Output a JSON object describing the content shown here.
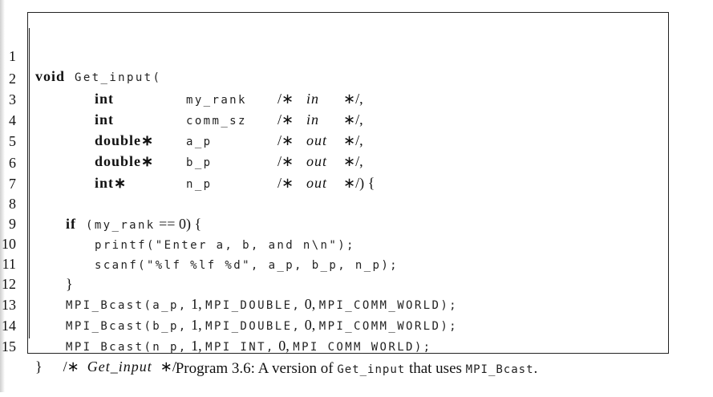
{
  "listing": {
    "lines": [
      {
        "n": "1"
      },
      {
        "n": "2"
      },
      {
        "n": "3"
      },
      {
        "n": "4"
      },
      {
        "n": "5"
      },
      {
        "n": "6"
      },
      {
        "n": "7"
      },
      {
        "n": "8"
      },
      {
        "n": "9"
      },
      {
        "n": "10"
      },
      {
        "n": "11"
      },
      {
        "n": "12"
      },
      {
        "n": "13"
      },
      {
        "n": "14"
      },
      {
        "n": "15"
      }
    ],
    "tokens": {
      "void": "void",
      "fname": "Get_input(",
      "int": "int",
      "double_ptr": "double∗",
      "int_ptr": "int∗",
      "my_rank": "my_rank",
      "comm_sz": "comm_sz",
      "a_p": "a_p",
      "b_p": "b_p",
      "n_p": "n_p",
      "c_open": "/∗",
      "c_close": "∗/,",
      "c_close_last": "∗/) {",
      "in": "in",
      "out": "out",
      "if": "if",
      "if_cond_a": "(my_rank",
      "if_cond_b": " == 0) {",
      "printf": "printf(\"Enter a, b, and n\\n\");",
      "scanf": "scanf(\"%lf %lf %d\", a_p, b_p, n_p);",
      "brace_close": "}",
      "bcast1_a": "MPI_Bcast(a_p,",
      "bcast1_b": " 1, ",
      "bcast1_c": "MPI_DOUBLE,",
      "bcast1_d": " 0, ",
      "bcast1_e": "MPI_COMM_WORLD);",
      "bcast2_a": "MPI_Bcast(b_p,",
      "bcast2_b": " 1, ",
      "bcast2_c": "MPI_DOUBLE,",
      "bcast2_d": " 0, ",
      "bcast2_e": "MPI_COMM_WORLD);",
      "bcast3_a": "MPI_Bcast(n_p,",
      "bcast3_b": " 1, ",
      "bcast3_c": "MPI_INT,",
      "bcast3_d": " 0, ",
      "bcast3_e": "MPI_COMM_WORLD);",
      "end_brace": "}",
      "end_comment_open": "/∗",
      "end_comment_text": "Get_input",
      "end_comment_close": "∗/"
    }
  },
  "caption": {
    "prefix": "Program 3.6: A version of ",
    "code1": "Get_input",
    "middle": " that uses ",
    "code2": "MPI_Bcast",
    "suffix": "."
  }
}
